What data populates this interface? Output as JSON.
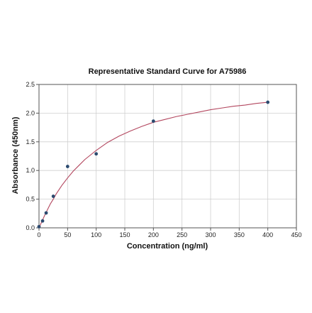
{
  "chart_data": {
    "type": "scatter",
    "title": "Representative Standard Curve for A75986",
    "xlabel": "Concentration (ng/ml)",
    "ylabel": "Absorbance (450nm)",
    "xlim": [
      0,
      450
    ],
    "ylim": [
      0,
      2.5
    ],
    "x_ticks": [
      0,
      50,
      100,
      150,
      200,
      250,
      300,
      350,
      400,
      450
    ],
    "y_ticks": [
      0.0,
      0.5,
      1.0,
      1.5,
      2.0,
      2.5
    ],
    "x_tick_labels": [
      "0",
      "50",
      "100",
      "150",
      "200",
      "250",
      "300",
      "350",
      "400",
      "450"
    ],
    "y_tick_labels": [
      "0.0",
      "0.5",
      "1.0",
      "1.5",
      "2.0",
      "2.5"
    ],
    "grid": true,
    "series": [
      {
        "x": [
          0,
          6.25,
          12.5,
          25,
          50,
          100,
          200,
          400
        ],
        "y": [
          0.02,
          0.12,
          0.26,
          0.55,
          1.07,
          1.29,
          1.86,
          2.19
        ]
      }
    ],
    "fit_curve": {
      "x": [
        0,
        5,
        10,
        15,
        20,
        25,
        30,
        40,
        50,
        60,
        70,
        80,
        90,
        100,
        120,
        140,
        160,
        180,
        200,
        220,
        240,
        260,
        280,
        300,
        320,
        340,
        360,
        380,
        400
      ],
      "y": [
        0.0,
        0.11,
        0.22,
        0.32,
        0.42,
        0.5,
        0.59,
        0.74,
        0.87,
        0.99,
        1.09,
        1.19,
        1.27,
        1.35,
        1.49,
        1.6,
        1.69,
        1.77,
        1.84,
        1.89,
        1.94,
        1.98,
        2.02,
        2.06,
        2.09,
        2.12,
        2.14,
        2.17,
        2.19
      ]
    },
    "colors": {
      "points": "#2b4a6f",
      "curve": "#b3475f",
      "grid": "#cfcfcf",
      "axis": "#555555"
    }
  }
}
